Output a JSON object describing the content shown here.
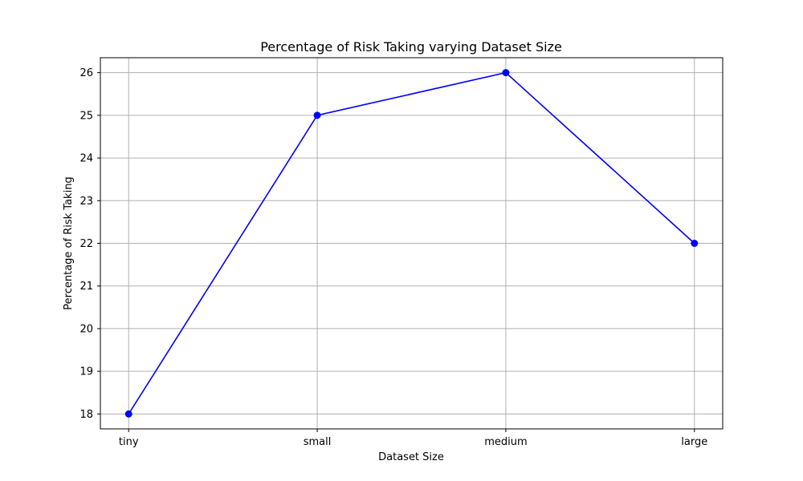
{
  "chart_data": {
    "type": "line",
    "title": "Percentage of Risk Taking varying Dataset Size",
    "xlabel": "Dataset Size",
    "ylabel": "Percentage of Risk Taking",
    "categories": [
      "tiny",
      "small",
      "medium",
      "large"
    ],
    "series": [
      {
        "values": [
          18,
          25,
          26,
          22
        ],
        "color": "#0000ff",
        "marker": "circle"
      }
    ],
    "ylim": [
      17.65,
      26.35
    ],
    "yticks": [
      18,
      19,
      20,
      21,
      22,
      23,
      24,
      25,
      26
    ],
    "grid": true,
    "legend": "none"
  }
}
